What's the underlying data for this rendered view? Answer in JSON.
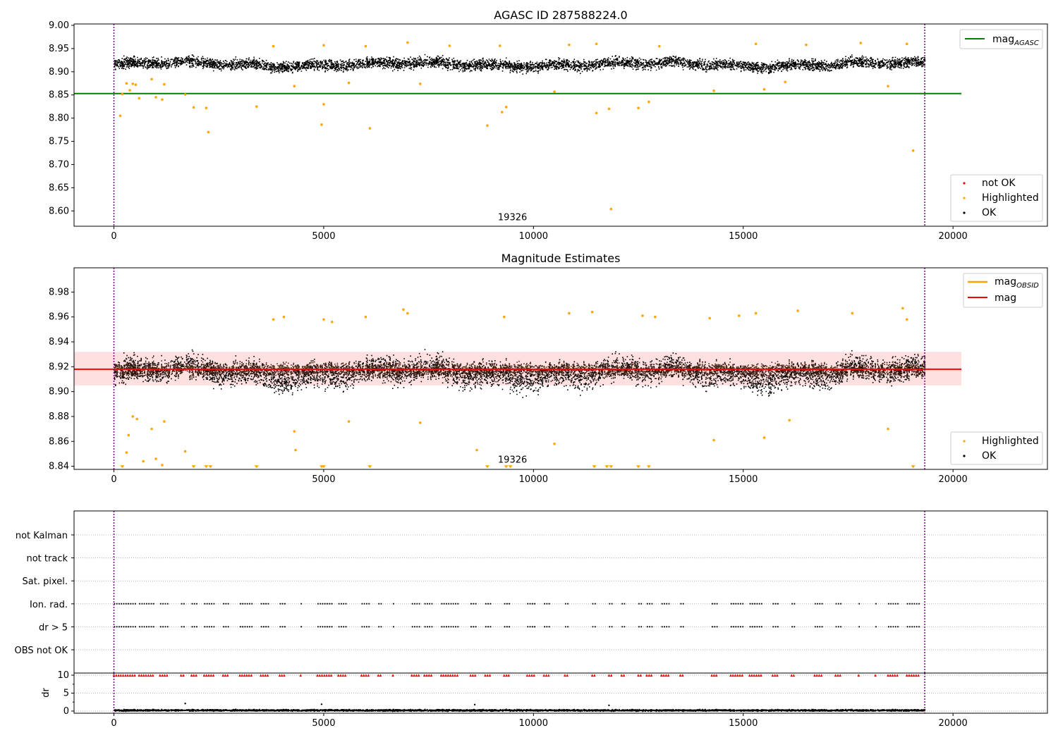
{
  "chart_data": [
    {
      "type": "scatter",
      "title": "AGASC ID 287588224.0",
      "xlim": [
        -950,
        22250
      ],
      "ylim": [
        8.567,
        9.003
      ],
      "xticks": [
        0,
        5000,
        10000,
        15000,
        20000
      ],
      "yticks": [
        8.6,
        8.65,
        8.7,
        8.75,
        8.8,
        8.85,
        8.9,
        8.95,
        9.0
      ],
      "ytick_format": 2,
      "vlines": [
        0,
        19326
      ],
      "vline_color": "#800080",
      "annotation": {
        "text": "19326",
        "x": 9500,
        "y": 8.58
      },
      "hline": {
        "name": "mag_AGASC",
        "value": 8.853,
        "x_range": [
          -950,
          20200
        ],
        "color": "#008000"
      },
      "band": {
        "center": 8.917,
        "low": 8.889,
        "high": 8.945,
        "n": 19326,
        "jitter": 0.017
      },
      "highlighted": [
        [
          150,
          8.805
        ],
        [
          200,
          8.852
        ],
        [
          300,
          8.875
        ],
        [
          380,
          8.86
        ],
        [
          450,
          8.874
        ],
        [
          520,
          8.872
        ],
        [
          600,
          8.843
        ],
        [
          900,
          8.884
        ],
        [
          1000,
          8.845
        ],
        [
          1150,
          8.84
        ],
        [
          1200,
          8.873
        ],
        [
          1700,
          8.851
        ],
        [
          1900,
          8.823
        ],
        [
          2200,
          8.822
        ],
        [
          2250,
          8.77
        ],
        [
          3400,
          8.825
        ],
        [
          4300,
          8.869
        ],
        [
          4950,
          8.786
        ],
        [
          5000,
          8.83
        ],
        [
          5600,
          8.876
        ],
        [
          6100,
          8.778
        ],
        [
          7300,
          8.874
        ],
        [
          8900,
          8.784
        ],
        [
          9250,
          8.813
        ],
        [
          9350,
          8.824
        ],
        [
          10500,
          8.857
        ],
        [
          11500,
          8.811
        ],
        [
          11800,
          8.82
        ],
        [
          11850,
          8.604
        ],
        [
          12500,
          8.822
        ],
        [
          12750,
          8.835
        ],
        [
          14300,
          8.859
        ],
        [
          15500,
          8.862
        ],
        [
          16000,
          8.878
        ],
        [
          18450,
          8.869
        ],
        [
          19050,
          8.73
        ],
        [
          3800,
          8.955
        ],
        [
          5000,
          8.957
        ],
        [
          6000,
          8.955
        ],
        [
          7000,
          8.963
        ],
        [
          8000,
          8.956
        ],
        [
          9200,
          8.956
        ],
        [
          10850,
          8.958
        ],
        [
          11500,
          8.96
        ],
        [
          13000,
          8.955
        ],
        [
          15300,
          8.96
        ],
        [
          16500,
          8.958
        ],
        [
          17800,
          8.962
        ],
        [
          18900,
          8.96
        ]
      ],
      "legends": [
        {
          "position": "top-right",
          "entries": [
            {
              "label": "mag",
              "sub": "AGASC",
              "color": "#008000",
              "kind": "line"
            }
          ]
        },
        {
          "position": "bottom-right",
          "entries": [
            {
              "label": "not OK",
              "color": "#ff0000",
              "kind": "dot"
            },
            {
              "label": "Highlighted",
              "color": "#ffa500",
              "kind": "dot"
            },
            {
              "label": "OK",
              "color": "#000000",
              "kind": "dot"
            }
          ]
        }
      ]
    },
    {
      "type": "scatter",
      "title": "Magnitude Estimates",
      "xlim": [
        -950,
        22250
      ],
      "ylim": [
        8.8375,
        8.9995
      ],
      "xticks": [
        0,
        5000,
        10000,
        15000,
        20000
      ],
      "yticks": [
        8.84,
        8.86,
        8.88,
        8.9,
        8.92,
        8.94,
        8.96,
        8.98
      ],
      "ytick_format": 2,
      "vlines": [
        0,
        19326
      ],
      "vline_color": "#800080",
      "annotation": {
        "text": "19326",
        "x": 9500,
        "y": 8.843
      },
      "hline": {
        "name": "mag",
        "value": 8.918,
        "x_range": [
          -950,
          20200
        ],
        "color": "#ff0000"
      },
      "shaded_band": {
        "low": 8.905,
        "high": 8.932,
        "color": "#ffcccc"
      },
      "band": {
        "center": 8.915,
        "low": 8.885,
        "high": 8.945,
        "n": 19326,
        "jitter": 0.015
      },
      "highlighted": [
        [
          300,
          8.851
        ],
        [
          350,
          8.865
        ],
        [
          450,
          8.88
        ],
        [
          550,
          8.878
        ],
        [
          700,
          8.844
        ],
        [
          900,
          8.87
        ],
        [
          1000,
          8.846
        ],
        [
          1150,
          8.841
        ],
        [
          1200,
          8.876
        ],
        [
          1700,
          8.852
        ],
        [
          4300,
          8.868
        ],
        [
          4330,
          8.853
        ],
        [
          5600,
          8.876
        ],
        [
          7300,
          8.875
        ],
        [
          8650,
          8.853
        ],
        [
          10500,
          8.858
        ],
        [
          14300,
          8.861
        ],
        [
          15500,
          8.863
        ],
        [
          16100,
          8.877
        ],
        [
          18450,
          8.87
        ],
        [
          3800,
          8.958
        ],
        [
          4050,
          8.96
        ],
        [
          5000,
          8.958
        ],
        [
          5200,
          8.956
        ],
        [
          6000,
          8.96
        ],
        [
          6900,
          8.966
        ],
        [
          7000,
          8.963
        ],
        [
          9300,
          8.96
        ],
        [
          10850,
          8.963
        ],
        [
          11400,
          8.964
        ],
        [
          12600,
          8.961
        ],
        [
          12900,
          8.96
        ],
        [
          14200,
          8.959
        ],
        [
          14900,
          8.961
        ],
        [
          15300,
          8.963
        ],
        [
          16300,
          8.965
        ],
        [
          17600,
          8.963
        ],
        [
          18800,
          8.967
        ],
        [
          18900,
          8.958
        ]
      ],
      "low_markers": [
        200,
        1900,
        2200,
        2300,
        3400,
        4950,
        5000,
        6100,
        8900,
        9350,
        9450,
        11450,
        11750,
        11850,
        12500,
        12750,
        19050
      ],
      "low_marker_y": 8.8385,
      "legends": [
        {
          "position": "top-right",
          "entries": [
            {
              "label": "mag",
              "sub": "OBSID",
              "color": "#ffa500",
              "kind": "line"
            },
            {
              "label": "mag",
              "sub": "",
              "color": "#ff0000",
              "kind": "line"
            }
          ]
        },
        {
          "position": "bottom-right",
          "entries": [
            {
              "label": "Highlighted",
              "color": "#ffa500",
              "kind": "dot"
            },
            {
              "label": "OK",
              "color": "#000000",
              "kind": "dot"
            }
          ]
        }
      ]
    },
    {
      "type": "scatter",
      "xlim": [
        -950,
        22250
      ],
      "categories": [
        "OBS not OK",
        "dr > 5",
        "Ion. rad.",
        "Sat. pixel.",
        "not track",
        "not Kalman"
      ],
      "flag_rows": {
        "dr > 5": "flagged",
        "Ion. rad.": "flagged"
      },
      "flag_clusters": [
        [
          0,
          500
        ],
        [
          600,
          950
        ],
        [
          1100,
          1300
        ],
        [
          1600,
          1700
        ],
        [
          1850,
          2000
        ],
        [
          2150,
          2400
        ],
        [
          2600,
          2750
        ],
        [
          3000,
          3300
        ],
        [
          3500,
          3700
        ],
        [
          3950,
          4100
        ],
        [
          4450,
          4500
        ],
        [
          4850,
          5200
        ],
        [
          5350,
          5550
        ],
        [
          5900,
          6100
        ],
        [
          6300,
          6400
        ],
        [
          6650,
          6700
        ],
        [
          7100,
          7300
        ],
        [
          7400,
          7600
        ],
        [
          7800,
          8200
        ],
        [
          8500,
          8650
        ],
        [
          8850,
          9000
        ],
        [
          9300,
          9450
        ],
        [
          9850,
          10050
        ],
        [
          10250,
          10400
        ],
        [
          10750,
          10850
        ],
        [
          11400,
          11500
        ],
        [
          11800,
          11900
        ],
        [
          12100,
          12200
        ],
        [
          12500,
          12600
        ],
        [
          12700,
          12850
        ],
        [
          13050,
          13250
        ],
        [
          13500,
          13600
        ],
        [
          14250,
          14400
        ],
        [
          14700,
          15000
        ],
        [
          15150,
          15450
        ],
        [
          15700,
          15850
        ],
        [
          16150,
          16250
        ],
        [
          16700,
          16900
        ],
        [
          17200,
          17350
        ],
        [
          17750,
          17800
        ],
        [
          18150,
          18200
        ],
        [
          18450,
          18700
        ],
        [
          18900,
          19200
        ]
      ]
    },
    {
      "type": "scatter",
      "ylabel": "dr",
      "xlim": [
        -950,
        22250
      ],
      "ylim": [
        -0.6,
        10.6
      ],
      "xticks": [
        0,
        5000,
        10000,
        15000,
        20000
      ],
      "yticks": [
        0,
        5,
        10
      ],
      "vlines": [
        0,
        19326
      ],
      "vline_color": "#800080",
      "clipped_marker_y": 10,
      "clipped_color": "#ff0000",
      "dr_baseline": {
        "center": 0.35,
        "spread": 0.35,
        "n": 19326
      },
      "dr_outliers": [
        [
          1700,
          2.1
        ],
        [
          4950,
          1.9
        ],
        [
          8600,
          1.8
        ],
        [
          11800,
          1.6
        ]
      ]
    }
  ]
}
